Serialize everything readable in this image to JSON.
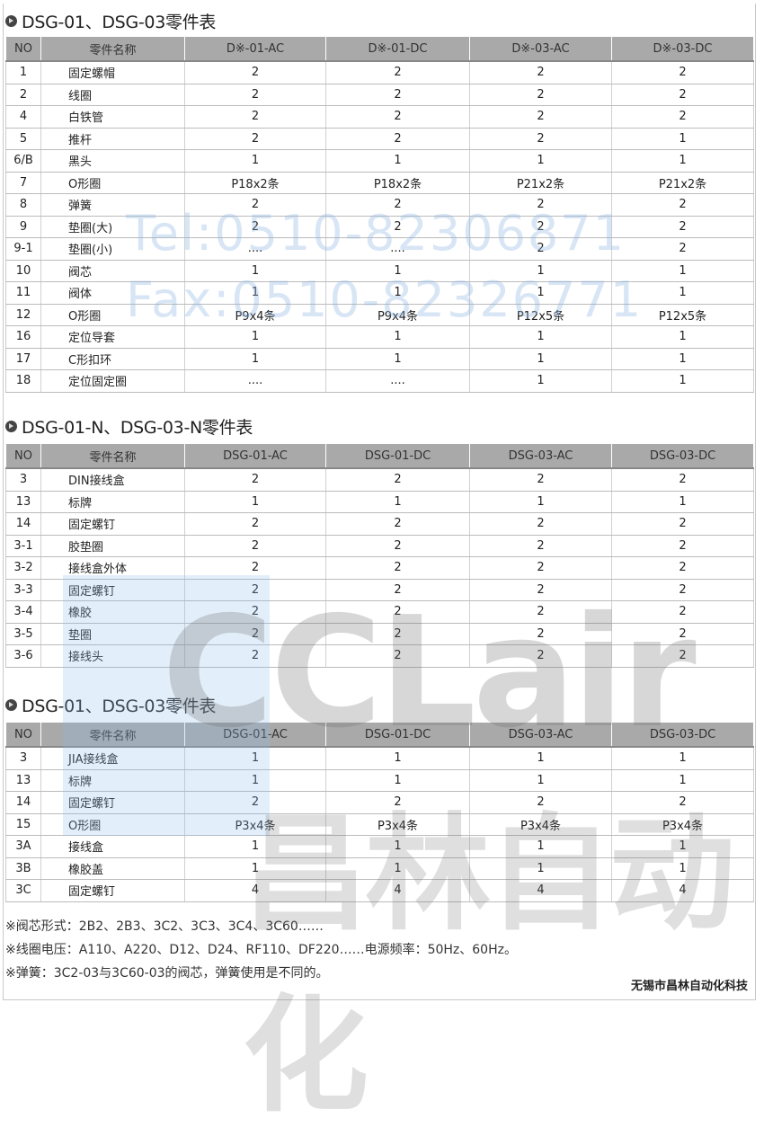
{
  "tables": [
    {
      "title": "DSG-01、DSG-03零件表",
      "headers": [
        "NO",
        "零件名称",
        "D※-01-AC",
        "D※-01-DC",
        "D※-03-AC",
        "D※-03-DC"
      ],
      "rows": [
        [
          "1",
          "固定螺帽",
          "2",
          "2",
          "2",
          "2"
        ],
        [
          "2",
          "线圈",
          "2",
          "2",
          "2",
          "2"
        ],
        [
          "4",
          "白铁管",
          "2",
          "2",
          "2",
          "2"
        ],
        [
          "5",
          "推杆",
          "2",
          "2",
          "2",
          "1"
        ],
        [
          "6/B",
          "黑头",
          "1",
          "1",
          "1",
          "1"
        ],
        [
          "7",
          "O形圈",
          "P18x2条",
          "P18x2条",
          "P21x2条",
          "P21x2条"
        ],
        [
          "8",
          "弹簧",
          "2",
          "2",
          "2",
          "2"
        ],
        [
          "9",
          "垫圈(大)",
          "2",
          "2",
          "2",
          "2"
        ],
        [
          "9-1",
          "垫圈(小)",
          "....",
          "....",
          "2",
          "2"
        ],
        [
          "10",
          "阀芯",
          "1",
          "1",
          "1",
          "1"
        ],
        [
          "11",
          "阀体",
          "1",
          "1",
          "1",
          "1"
        ],
        [
          "12",
          "O形圈",
          "P9x4条",
          "P9x4条",
          "P12x5条",
          "P12x5条"
        ],
        [
          "16",
          "定位导套",
          "1",
          "1",
          "1",
          "1"
        ],
        [
          "17",
          "C形扣环",
          "1",
          "1",
          "1",
          "1"
        ],
        [
          "18",
          "定位固定圈",
          "....",
          "....",
          "1",
          "1"
        ]
      ]
    },
    {
      "title": "DSG-01-N、DSG-03-N零件表",
      "headers": [
        "NO",
        "零件名称",
        "DSG-01-AC",
        "DSG-01-DC",
        "DSG-03-AC",
        "DSG-03-DC"
      ],
      "rows": [
        [
          "3",
          "DIN接线盒",
          "2",
          "2",
          "2",
          "2"
        ],
        [
          "13",
          "标牌",
          "1",
          "1",
          "1",
          "1"
        ],
        [
          "14",
          "固定螺钉",
          "2",
          "2",
          "2",
          "2"
        ],
        [
          "3-1",
          "胶垫圈",
          "2",
          "2",
          "2",
          "2"
        ],
        [
          "3-2",
          "接线盒外体",
          "2",
          "2",
          "2",
          "2"
        ],
        [
          "3-3",
          "固定螺钉",
          "2",
          "2",
          "2",
          "2"
        ],
        [
          "3-4",
          "橡胶",
          "2",
          "2",
          "2",
          "2"
        ],
        [
          "3-5",
          "垫圈",
          "2",
          "2",
          "2",
          "2"
        ],
        [
          "3-6",
          "接线头",
          "2",
          "2",
          "2",
          "2"
        ]
      ]
    },
    {
      "title": "DSG-01、DSG-03零件表",
      "headers": [
        "NO",
        "零件名称",
        "DSG-01-AC",
        "DSG-01-DC",
        "DSG-03-AC",
        "DSG-03-DC"
      ],
      "rows": [
        [
          "3",
          "JIA接线盒",
          "1",
          "1",
          "1",
          "1"
        ],
        [
          "13",
          "标牌",
          "1",
          "1",
          "1",
          "1"
        ],
        [
          "14",
          "固定螺钉",
          "2",
          "2",
          "2",
          "2"
        ],
        [
          "15",
          "O形圈",
          "P3x4条",
          "P3x4条",
          "P3x4条",
          "P3x4条"
        ],
        [
          "3A",
          "接线盒",
          "1",
          "1",
          "1",
          "1"
        ],
        [
          "3B",
          "橡胶盖",
          "1",
          "1",
          "1",
          "1"
        ],
        [
          "3C",
          "固定螺钉",
          "4",
          "4",
          "4",
          "4"
        ]
      ]
    }
  ],
  "notes": [
    "※阀芯形式：2B2、2B3、3C2、3C3、3C4、3C60……",
    "※线圈电压：A110、A220、D12、D24、RF110、DF220……电源频率：50Hz、60Hz。",
    "※弹簧：3C2-03与3C60-03的阀芯，弹簧使用是不同的。"
  ],
  "company": "无锡市昌林自动化科技",
  "watermark": {
    "tel": "Tel:0510-82306871",
    "fax": "Fax:0510-82326771",
    "logo": "CCLair",
    "logo_cn": "昌林自动化"
  }
}
